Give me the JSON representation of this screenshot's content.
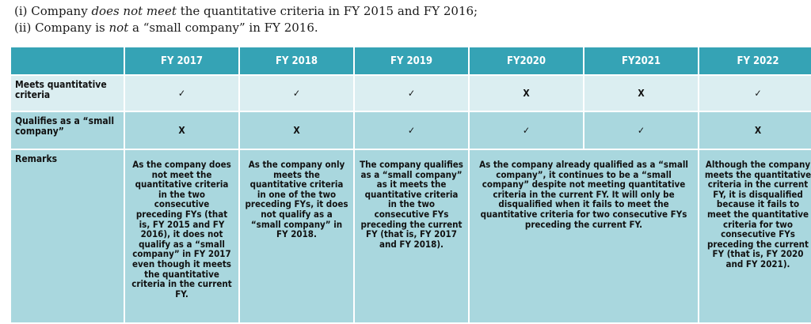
{
  "conditions": [
    {
      "prefix": "(i) Company ",
      "emph": "does not meet",
      "suffix": " the quantitative criteria in FY 2015 and FY 2016;"
    },
    {
      "prefix": "(ii) Company is ",
      "emph": "not",
      "suffix": " a “small company” in FY 2016."
    }
  ],
  "table": {
    "headers": [
      "",
      "FY 2017",
      "FY 2018",
      "FY 2019",
      "FY2020",
      "FY2021",
      "FY 2022"
    ],
    "rows": [
      {
        "label": "Meets quantitative criteria",
        "marks": [
          "✓",
          "✓",
          "✓",
          "X",
          "X",
          "✓"
        ]
      },
      {
        "label": "Qualifies as a “small company”",
        "marks": [
          "X",
          "X",
          "✓",
          "✓",
          "✓",
          "X"
        ]
      }
    ],
    "remarks_label": "Remarks",
    "remarks": [
      "As the company does not meet the quantitative criteria in the two consecutive preceding FYs (that is, FY 2015 and FY 2016), it does not qualify as a “small company” in FY 2017 even though it meets the quantitative criteria in the current FY.",
      "As the company only meets the quantitative criteria in one of the two preceding FYs, it does not qualify as a “small company” in FY 2018.",
      "The company qualifies as a “small company” as it meets the quantitative criteria in the two consecutive FYs preceding the current FY (that is, FY 2017 and FY 2018).",
      "As the company already qualified as a “small company”, it continues to be a “small company” despite not meeting quantitative criteria in the current FY. It will only be disqualified when it fails to meet the quantitative criteria for two consecutive FYs preceding the current FY.",
      "Although the company meets the quantitative criteria in the current FY, it is disqualified because it fails to meet the quantitative criteria for two consecutive FYs preceding the current FY (that is, FY 2020 and FY 2021)."
    ]
  },
  "colors": {
    "header": "#35a3b5",
    "row_light": "#dbeef1",
    "row_dark": "#a9d7de"
  }
}
